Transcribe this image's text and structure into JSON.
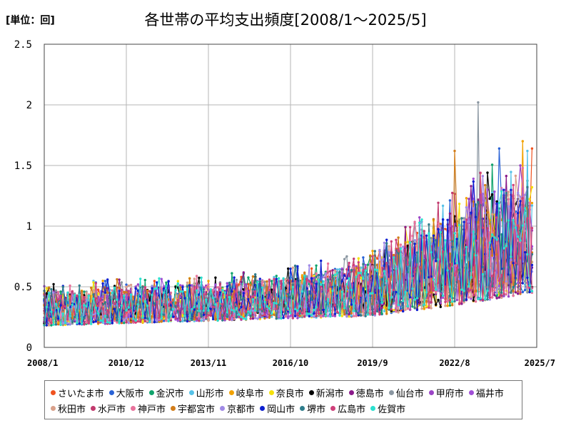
{
  "header": {
    "unit": "[単位：回]",
    "title": "各世帯の平均支出頻度[2008/1～2025/5]"
  },
  "chart_data": {
    "type": "line",
    "title": "各世帯の平均支出頻度[2008/1～2025/5]",
    "unit_label": "[単位：回]",
    "x_tick_labels": [
      "2008/1",
      "2010/12",
      "2013/11",
      "2016/10",
      "2019/9",
      "2022/8",
      "2025/7"
    ],
    "y_tick_labels": [
      "0",
      "0.5",
      "1",
      "1.5",
      "2",
      "2.5"
    ],
    "ylim": [
      0,
      2.5
    ],
    "x_range": [
      "2008/1",
      "2025/7"
    ],
    "grid": true,
    "legend_position": "bottom",
    "approximate_envelope": {
      "x": [
        "2008/1",
        "2010/12",
        "2013/11",
        "2016/10",
        "2019/9",
        "2021/1",
        "2022/8",
        "2024/1",
        "2025/5"
      ],
      "typical_low": [
        0.18,
        0.2,
        0.22,
        0.24,
        0.26,
        0.3,
        0.35,
        0.4,
        0.45
      ],
      "typical_high": [
        0.45,
        0.5,
        0.52,
        0.58,
        0.7,
        0.9,
        1.1,
        1.3,
        1.4
      ]
    },
    "notable_points": [
      {
        "series": "仙台市",
        "x": "2023/6",
        "y": 2.02
      },
      {
        "series": "岐阜市",
        "x": "2025/1",
        "y": 1.7
      },
      {
        "series": "大阪市",
        "x": "2024/3",
        "y": 1.64
      },
      {
        "series": "さいたま市",
        "x": "2025/5",
        "y": 1.64
      },
      {
        "series": "宇都宮市",
        "x": "2022/8",
        "y": 1.62
      },
      {
        "series": "山形市",
        "x": "2025/3",
        "y": 1.62
      },
      {
        "series": "甲府市",
        "x": "2024/12",
        "y": 1.5
      }
    ],
    "series": [
      {
        "name": "さいたま市",
        "color": "#f0521f"
      },
      {
        "name": "大阪市",
        "color": "#2a63d6"
      },
      {
        "name": "金沢市",
        "color": "#10a36c"
      },
      {
        "name": "山形市",
        "color": "#56c2e8"
      },
      {
        "name": "岐阜市",
        "color": "#f2a200"
      },
      {
        "name": "奈良市",
        "color": "#f5e10a"
      },
      {
        "name": "新潟市",
        "color": "#000000"
      },
      {
        "name": "徳島市",
        "color": "#8a1a8a"
      },
      {
        "name": "仙台市",
        "color": "#8a96a1"
      },
      {
        "name": "甲府市",
        "color": "#9b45c6"
      },
      {
        "name": "福井市",
        "color": "#a04fd6"
      },
      {
        "name": "秋田市",
        "color": "#d9a08a"
      },
      {
        "name": "水戸市",
        "color": "#c23a6e"
      },
      {
        "name": "神戸市",
        "color": "#e8729c"
      },
      {
        "name": "宇都宮市",
        "color": "#d27d1a"
      },
      {
        "name": "京都市",
        "color": "#a08ae6"
      },
      {
        "name": "岡山市",
        "color": "#0d1fd0"
      },
      {
        "name": "堺市",
        "color": "#2f7d8c"
      },
      {
        "name": "広島市",
        "color": "#cf3f7a"
      },
      {
        "name": "佐賀市",
        "color": "#2be0cf"
      }
    ]
  }
}
